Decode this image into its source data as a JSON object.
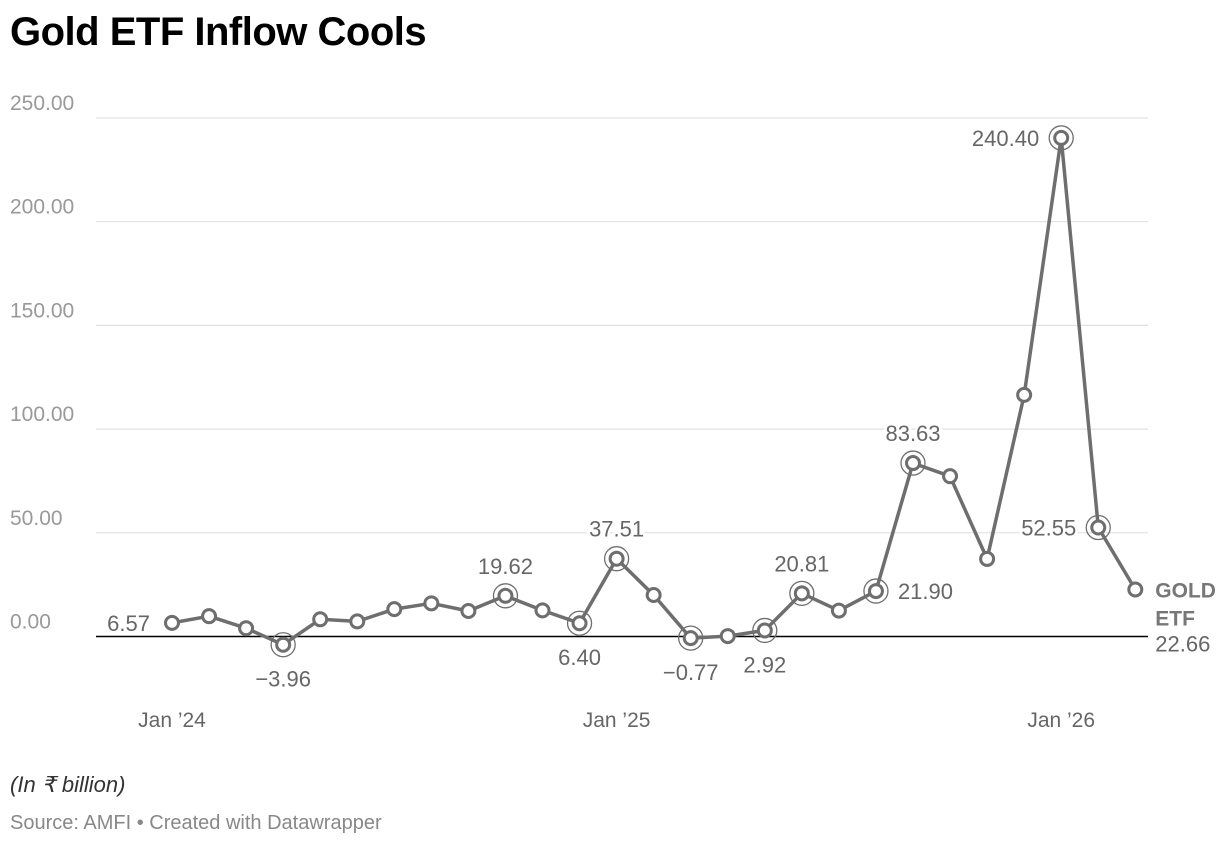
{
  "title": "Gold ETF Inflow Cools",
  "note": "(In ₹ billion)",
  "source": "Source: AMFI • Created with Datawrapper",
  "colors": {
    "line": "#6e6e6e",
    "grid": "#e1e1e1",
    "zero": "#000000"
  },
  "chart_data": {
    "type": "line",
    "title": "Gold ETF Inflow Cools",
    "xlabel": "",
    "ylabel": "(In ₹ billion)",
    "ylim": [
      -10,
      250
    ],
    "y_ticks": [
      {
        "value": 0,
        "label": "0.00"
      },
      {
        "value": 50,
        "label": "50.00"
      },
      {
        "value": 100,
        "label": "100.00"
      },
      {
        "value": 150,
        "label": "150.00"
      },
      {
        "value": 200,
        "label": "200.00"
      },
      {
        "value": 250,
        "label": "250.00"
      }
    ],
    "x_ticks": [
      {
        "index": 0,
        "label": "Jan ’24"
      },
      {
        "index": 12,
        "label": "Jan ’25"
      },
      {
        "index": 24,
        "label": "Jan ’26"
      }
    ],
    "grid": true,
    "series": [
      {
        "name": "GOLD ETF",
        "x": [
          "Jan 2024",
          "Feb 2024",
          "Mar 2024",
          "Apr 2024",
          "May 2024",
          "Jun 2024",
          "Jul 2024",
          "Aug 2024",
          "Sep 2024",
          "Oct 2024",
          "Nov 2024",
          "Dec 2024",
          "Jan 2025",
          "Feb 2025",
          "Mar 2025",
          "Apr 2025",
          "May 2025",
          "Jun 2025",
          "Jul 2025",
          "Aug 2025",
          "Sep 2025",
          "Oct 2025",
          "Nov 2025",
          "Dec 2025",
          "Jan 2026",
          "Feb 2026",
          "Mar 2026"
        ],
        "values": [
          6.57,
          9.8,
          4.0,
          -3.96,
          8.3,
          7.3,
          13.2,
          16.0,
          12.3,
          19.62,
          12.6,
          6.4,
          37.51,
          20.0,
          -0.77,
          0.2,
          2.92,
          20.81,
          12.5,
          21.9,
          83.63,
          77.3,
          37.4,
          116.5,
          240.4,
          52.55,
          22.66
        ]
      }
    ],
    "annotations": [
      {
        "index": 0,
        "label": "6.57",
        "ring": false,
        "pos": "left"
      },
      {
        "index": 3,
        "label": "−3.96",
        "ring": true,
        "pos": "below"
      },
      {
        "index": 9,
        "label": "19.62",
        "ring": true,
        "pos": "above"
      },
      {
        "index": 11,
        "label": "6.40",
        "ring": true,
        "pos": "below"
      },
      {
        "index": 12,
        "label": "37.51",
        "ring": true,
        "pos": "above"
      },
      {
        "index": 14,
        "label": "−0.77",
        "ring": true,
        "pos": "below"
      },
      {
        "index": 16,
        "label": "2.92",
        "ring": true,
        "pos": "below"
      },
      {
        "index": 17,
        "label": "20.81",
        "ring": true,
        "pos": "above"
      },
      {
        "index": 19,
        "label": "21.90",
        "ring": true,
        "pos": "right"
      },
      {
        "index": 20,
        "label": "83.63",
        "ring": true,
        "pos": "above"
      },
      {
        "index": 24,
        "label": "240.40",
        "ring": true,
        "pos": "left"
      },
      {
        "index": 25,
        "label": "52.55",
        "ring": true,
        "pos": "left"
      },
      {
        "index": 26,
        "label": "22.66",
        "ring": false,
        "pos": "end"
      }
    ],
    "series_label_lines": [
      "GOLD",
      "ETF"
    ]
  }
}
